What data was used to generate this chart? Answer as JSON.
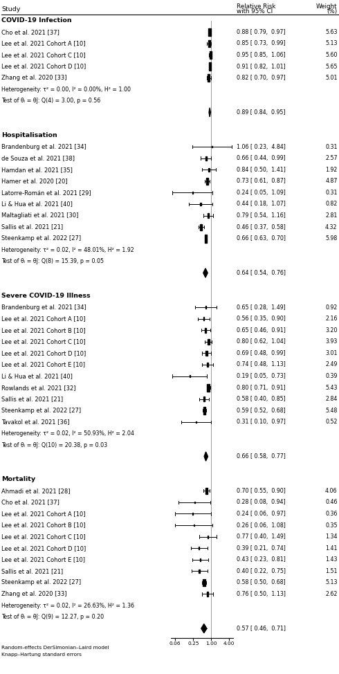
{
  "footer1": "Random-effects DerSimonian–Laird model",
  "footer2": "Knapp–Hartung standard errors",
  "sections": [
    {
      "name": "COVID-19 Infection",
      "rows": [
        {
          "type": "study",
          "label": "Cho et al. 2021 [37]",
          "rr": 0.88,
          "ci_lo": 0.79,
          "ci_hi": 0.97,
          "weight": 5.63,
          "ci_text": "0.88 [ 0.79,  0.97]",
          "wt_text": "5.63"
        },
        {
          "type": "study",
          "label": "Lee et al. 2021 Cohort A [10]",
          "rr": 0.85,
          "ci_lo": 0.73,
          "ci_hi": 0.99,
          "weight": 5.13,
          "ci_text": "0.85 [ 0.73,  0.99]",
          "wt_text": "5.13"
        },
        {
          "type": "study",
          "label": "Lee et al. 2021 Cohort C [10]",
          "rr": 0.95,
          "ci_lo": 0.85,
          "ci_hi": 1.06,
          "weight": 5.6,
          "ci_text": "0.95 [ 0.85,  1.06]",
          "wt_text": "5.60"
        },
        {
          "type": "study",
          "label": "Lee et al. 2021 Cohort D [10]",
          "rr": 0.91,
          "ci_lo": 0.82,
          "ci_hi": 1.01,
          "weight": 5.65,
          "ci_text": "0.91 [ 0.82,  1.01]",
          "wt_text": "5.65"
        },
        {
          "type": "study",
          "label": "Zhang et al. 2020 [33]",
          "rr": 0.82,
          "ci_lo": 0.7,
          "ci_hi": 0.97,
          "weight": 5.01,
          "ci_text": "0.82 [ 0.70,  0.97]",
          "wt_text": "5.01"
        },
        {
          "type": "het",
          "label": "Heterogeneity: τ² = 0.00, I² = 0.00%, H² = 1.00"
        },
        {
          "type": "test",
          "label": "Test of θᵢ = θĵ: Q(4) = 3.00, p = 0.56"
        },
        {
          "type": "summary",
          "rr": 0.89,
          "ci_lo": 0.84,
          "ci_hi": 0.95,
          "ci_text": "0.89 [ 0.84,  0.95]"
        }
      ]
    },
    {
      "name": "Hospitalisation",
      "rows": [
        {
          "type": "study",
          "label": "Brandenburg et al. 2021 [34]",
          "rr": 1.06,
          "ci_lo": 0.23,
          "ci_hi": 4.84,
          "weight": 0.31,
          "ci_text": "1.06 [ 0.23,  4.84]",
          "wt_text": "0.31"
        },
        {
          "type": "study",
          "label": "de Souza et al. 2021 [38]",
          "rr": 0.66,
          "ci_lo": 0.44,
          "ci_hi": 0.99,
          "weight": 2.57,
          "ci_text": "0.66 [ 0.44,  0.99]",
          "wt_text": "2.57"
        },
        {
          "type": "study",
          "label": "Hamdan et al. 2021 [35]",
          "rr": 0.84,
          "ci_lo": 0.5,
          "ci_hi": 1.41,
          "weight": 1.92,
          "ci_text": "0.84 [ 0.50,  1.41]",
          "wt_text": "1.92"
        },
        {
          "type": "study",
          "label": "Hamer et al. 2020 [20]",
          "rr": 0.73,
          "ci_lo": 0.61,
          "ci_hi": 0.87,
          "weight": 4.87,
          "ci_text": "0.73 [ 0.61,  0.87]",
          "wt_text": "4.87"
        },
        {
          "type": "study",
          "label": "Latorre-Román et al. 2021 [29]",
          "rr": 0.24,
          "ci_lo": 0.05,
          "ci_hi": 1.09,
          "weight": 0.31,
          "ci_text": "0.24 [ 0.05,  1.09]",
          "wt_text": "0.31"
        },
        {
          "type": "study",
          "label": "Li & Hua et al. 2021 [40]",
          "rr": 0.44,
          "ci_lo": 0.18,
          "ci_hi": 1.07,
          "weight": 0.82,
          "ci_text": "0.44 [ 0.18,  1.07]",
          "wt_text": "0.82"
        },
        {
          "type": "study",
          "label": "Maltagliati et al. 2021 [30]",
          "rr": 0.79,
          "ci_lo": 0.54,
          "ci_hi": 1.16,
          "weight": 2.81,
          "ci_text": "0.79 [ 0.54,  1.16]",
          "wt_text": "2.81"
        },
        {
          "type": "study",
          "label": "Sallis et al. 2021 [21]",
          "rr": 0.46,
          "ci_lo": 0.37,
          "ci_hi": 0.58,
          "weight": 4.32,
          "ci_text": "0.46 [ 0.37,  0.58]",
          "wt_text": "4.32"
        },
        {
          "type": "study",
          "label": "Steenkamp et al. 2022 [27]",
          "rr": 0.66,
          "ci_lo": 0.63,
          "ci_hi": 0.7,
          "weight": 5.98,
          "ci_text": "0.66 [ 0.63,  0.70]",
          "wt_text": "5.98"
        },
        {
          "type": "het",
          "label": "Heterogeneity: τ² = 0.02, I² = 48.01%, H² = 1.92"
        },
        {
          "type": "test",
          "label": "Test of θᵢ = θĵ: Q(8) = 15.39, p = 0.05"
        },
        {
          "type": "summary",
          "rr": 0.64,
          "ci_lo": 0.54,
          "ci_hi": 0.76,
          "ci_text": "0.64 [ 0.54,  0.76]"
        }
      ]
    },
    {
      "name": "Severe COVID-19 Illness",
      "rows": [
        {
          "type": "study",
          "label": "Brandenburg et al. 2021 [34]",
          "rr": 0.65,
          "ci_lo": 0.28,
          "ci_hi": 1.49,
          "weight": 0.92,
          "ci_text": "0.65 [ 0.28,  1.49]",
          "wt_text": "0.92"
        },
        {
          "type": "study",
          "label": "Lee et al. 2021 Cohort A [10]",
          "rr": 0.56,
          "ci_lo": 0.35,
          "ci_hi": 0.9,
          "weight": 2.16,
          "ci_text": "0.56 [ 0.35,  0.90]",
          "wt_text": "2.16"
        },
        {
          "type": "study",
          "label": "Lee et al. 2021 Cohort B [10]",
          "rr": 0.65,
          "ci_lo": 0.46,
          "ci_hi": 0.91,
          "weight": 3.2,
          "ci_text": "0.65 [ 0.46,  0.91]",
          "wt_text": "3.20"
        },
        {
          "type": "study",
          "label": "Lee et al. 2021 Cohort C [10]",
          "rr": 0.8,
          "ci_lo": 0.62,
          "ci_hi": 1.04,
          "weight": 3.93,
          "ci_text": "0.80 [ 0.62,  1.04]",
          "wt_text": "3.93"
        },
        {
          "type": "study",
          "label": "Lee et al. 2021 Cohort D [10]",
          "rr": 0.69,
          "ci_lo": 0.48,
          "ci_hi": 0.99,
          "weight": 3.01,
          "ci_text": "0.69 [ 0.48,  0.99]",
          "wt_text": "3.01"
        },
        {
          "type": "study",
          "label": "Lee et al. 2021 Cohort E [10]",
          "rr": 0.74,
          "ci_lo": 0.48,
          "ci_hi": 1.13,
          "weight": 2.49,
          "ci_text": "0.74 [ 0.48,  1.13]",
          "wt_text": "2.49"
        },
        {
          "type": "study",
          "label": "Li & Hua et al. 2021 [40]",
          "rr": 0.19,
          "ci_lo": 0.05,
          "ci_hi": 0.73,
          "weight": 0.39,
          "ci_text": "0.19 [ 0.05,  0.73]",
          "wt_text": "0.39"
        },
        {
          "type": "study",
          "label": "Rowlands et al. 2021 [32]",
          "rr": 0.8,
          "ci_lo": 0.71,
          "ci_hi": 0.91,
          "weight": 5.43,
          "ci_text": "0.80 [ 0.71,  0.91]",
          "wt_text": "5.43"
        },
        {
          "type": "study",
          "label": "Sallis et al. 2021 [21]",
          "rr": 0.58,
          "ci_lo": 0.4,
          "ci_hi": 0.85,
          "weight": 2.84,
          "ci_text": "0.58 [ 0.40,  0.85]",
          "wt_text": "2.84"
        },
        {
          "type": "study",
          "label": "Steenkamp et al. 2022 [27]",
          "rr": 0.59,
          "ci_lo": 0.52,
          "ci_hi": 0.68,
          "weight": 5.48,
          "ci_text": "0.59 [ 0.52,  0.68]",
          "wt_text": "5.48"
        },
        {
          "type": "study",
          "label": "Tavakol et al. 2021 [36]",
          "rr": 0.31,
          "ci_lo": 0.1,
          "ci_hi": 0.97,
          "weight": 0.52,
          "ci_text": "0.31 [ 0.10,  0.97]",
          "wt_text": "0.52"
        },
        {
          "type": "het",
          "label": "Heterogeneity: τ² = 0.02, I² = 50.93%, H² = 2.04"
        },
        {
          "type": "test",
          "label": "Test of θᵢ = θĵ: Q(10) = 20.38, p = 0.03"
        },
        {
          "type": "summary",
          "rr": 0.66,
          "ci_lo": 0.58,
          "ci_hi": 0.77,
          "ci_text": "0.66 [ 0.58,  0.77]"
        }
      ]
    },
    {
      "name": "Mortality",
      "rows": [
        {
          "type": "study",
          "label": "Ahmadi et al. 2021 [28]",
          "rr": 0.7,
          "ci_lo": 0.55,
          "ci_hi": 0.9,
          "weight": 4.06,
          "ci_text": "0.70 [ 0.55,  0.90]",
          "wt_text": "4.06"
        },
        {
          "type": "study",
          "label": "Cho et al. 2021 [37]",
          "rr": 0.28,
          "ci_lo": 0.08,
          "ci_hi": 0.94,
          "weight": 0.46,
          "ci_text": "0.28 [ 0.08,  0.94]",
          "wt_text": "0.46"
        },
        {
          "type": "study",
          "label": "Lee et al. 2021 Cohort A [10]",
          "rr": 0.24,
          "ci_lo": 0.06,
          "ci_hi": 0.97,
          "weight": 0.36,
          "ci_text": "0.24 [ 0.06,  0.97]",
          "wt_text": "0.36"
        },
        {
          "type": "study",
          "label": "Lee et al. 2021 Cohort B [10]",
          "rr": 0.26,
          "ci_lo": 0.06,
          "ci_hi": 1.08,
          "weight": 0.35,
          "ci_text": "0.26 [ 0.06,  1.08]",
          "wt_text": "0.35"
        },
        {
          "type": "study",
          "label": "Lee et al. 2021 Cohort C [10]",
          "rr": 0.77,
          "ci_lo": 0.4,
          "ci_hi": 1.49,
          "weight": 1.34,
          "ci_text": "0.77 [ 0.40,  1.49]",
          "wt_text": "1.34"
        },
        {
          "type": "study",
          "label": "Lee et al. 2021 Cohort D [10]",
          "rr": 0.39,
          "ci_lo": 0.21,
          "ci_hi": 0.74,
          "weight": 1.41,
          "ci_text": "0.39 [ 0.21,  0.74]",
          "wt_text": "1.41"
        },
        {
          "type": "study",
          "label": "Lee et al. 2021 Cohort E [10]",
          "rr": 0.43,
          "ci_lo": 0.23,
          "ci_hi": 0.81,
          "weight": 1.43,
          "ci_text": "0.43 [ 0.23,  0.81]",
          "wt_text": "1.43"
        },
        {
          "type": "study",
          "label": "Sallis et al. 2021 [21]",
          "rr": 0.4,
          "ci_lo": 0.22,
          "ci_hi": 0.75,
          "weight": 1.51,
          "ci_text": "0.40 [ 0.22,  0.75]",
          "wt_text": "1.51"
        },
        {
          "type": "study",
          "label": "Steenkamp et al. 2022 [27]",
          "rr": 0.58,
          "ci_lo": 0.5,
          "ci_hi": 0.68,
          "weight": 5.13,
          "ci_text": "0.58 [ 0.50,  0.68]",
          "wt_text": "5.13"
        },
        {
          "type": "study",
          "label": "Zhang et al. 2020 [33]",
          "rr": 0.76,
          "ci_lo": 0.5,
          "ci_hi": 1.13,
          "weight": 2.62,
          "ci_text": "0.76 [ 0.50,  1.13]",
          "wt_text": "2.62"
        },
        {
          "type": "het",
          "label": "Heterogeneity: τ² = 0.02, I² = 26.63%, H² = 1.36"
        },
        {
          "type": "test",
          "label": "Test of θᵢ = θĵ: Q(9) = 12.27, p = 0.20"
        },
        {
          "type": "summary",
          "rr": 0.57,
          "ci_lo": 0.46,
          "ci_hi": 0.71,
          "ci_text": "0.57 [ 0.46,  0.71]"
        }
      ]
    }
  ],
  "x_ticks": [
    0.06,
    0.25,
    1.0,
    4.0
  ],
  "x_tick_labels": [
    "0.06",
    "0.25",
    "1.00",
    "4.00"
  ],
  "weight_max": 6.0,
  "weight_min": 0.3
}
